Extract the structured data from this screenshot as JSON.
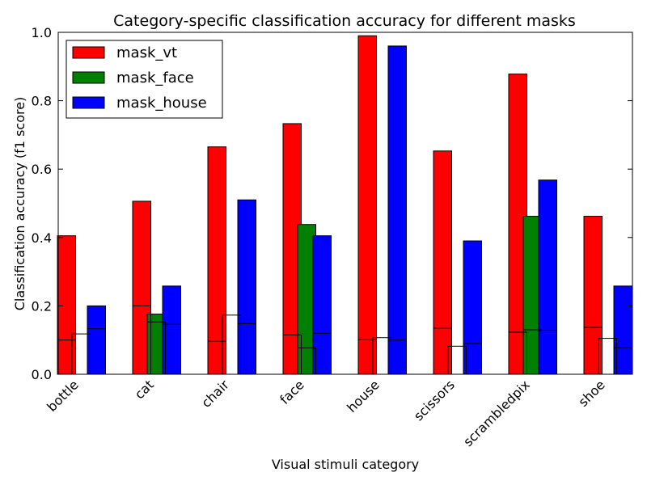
{
  "chart_data": {
    "type": "bar",
    "title": "Category-specific classification accuracy for different masks",
    "xlabel": "Visual stimuli category",
    "ylabel": "Classification accuracy (f1 score)",
    "ylim": [
      0,
      1.0
    ],
    "yticks": [
      "0.0",
      "0.2",
      "0.4",
      "0.6",
      "0.8",
      "1.0"
    ],
    "categories": [
      "bottle",
      "cat",
      "chair",
      "face",
      "house",
      "scissors",
      "scrambledpix",
      "shoe"
    ],
    "legend_position": "top-left",
    "series": [
      {
        "name": "mask_vt",
        "color": "#ff0000",
        "values": [
          0.405,
          0.506,
          0.665,
          0.733,
          0.99,
          0.653,
          0.878,
          0.462
        ]
      },
      {
        "name": "mask_face",
        "color": "#008000",
        "values": [
          0.0,
          0.176,
          0.0,
          0.438,
          0.0,
          0.0,
          0.462,
          0.0
        ]
      },
      {
        "name": "mask_house",
        "color": "#0000ff",
        "values": [
          0.2,
          0.258,
          0.51,
          0.405,
          0.96,
          0.39,
          0.568,
          0.258
        ]
      }
    ],
    "chance_levels": [
      [
        0.1,
        0.118,
        0.133
      ],
      [
        0.2,
        0.153,
        0.146
      ],
      [
        0.097,
        0.173,
        0.148
      ],
      [
        0.115,
        0.077,
        0.12
      ],
      [
        0.102,
        0.107,
        0.1
      ],
      [
        0.135,
        0.082,
        0.09
      ],
      [
        0.123,
        0.13,
        0.127
      ],
      [
        0.137,
        0.105,
        0.078
      ]
    ]
  }
}
